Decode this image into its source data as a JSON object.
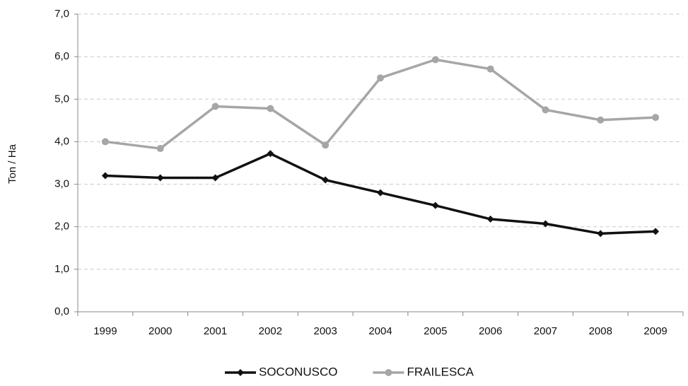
{
  "chart_data": {
    "type": "line",
    "y_label": "Ton / Ha",
    "categories": [
      "1999",
      "2000",
      "2001",
      "2002",
      "2003",
      "2004",
      "2005",
      "2006",
      "2007",
      "2008",
      "2009"
    ],
    "series": [
      {
        "name": "SOCONUSCO",
        "color": "#111111",
        "marker": "diamond",
        "values": [
          3.2,
          3.15,
          3.15,
          3.72,
          3.1,
          2.8,
          2.5,
          2.18,
          2.07,
          1.84,
          1.89
        ]
      },
      {
        "name": "FRAILESCA",
        "color": "#a6a6a6",
        "marker": "circle",
        "values": [
          4.0,
          3.84,
          4.83,
          4.78,
          3.92,
          5.5,
          5.93,
          5.71,
          4.75,
          4.51,
          4.57
        ]
      }
    ],
    "ylim": [
      0,
      7
    ],
    "yticks": [
      {
        "value": 0,
        "label": "0,0"
      },
      {
        "value": 1,
        "label": "1,0"
      },
      {
        "value": 2,
        "label": "2,0"
      },
      {
        "value": 3,
        "label": "3,0"
      },
      {
        "value": 4,
        "label": "4,0"
      },
      {
        "value": 5,
        "label": "5,0"
      },
      {
        "value": 6,
        "label": "6,0"
      },
      {
        "value": 7,
        "label": "7,0"
      }
    ],
    "grid": true,
    "legend": "bottom"
  }
}
